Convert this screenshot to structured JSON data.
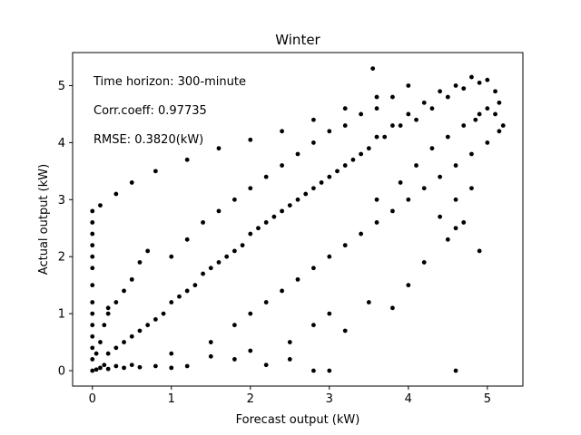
{
  "chart_data": {
    "type": "scatter",
    "title": "Winter",
    "xlabel": "Forecast output (kW)",
    "ylabel": "Actual output (kW)",
    "xlim": [
      -0.25,
      5.45
    ],
    "ylim": [
      -0.27,
      5.58
    ],
    "xticks": [
      0,
      1,
      2,
      3,
      4,
      5
    ],
    "yticks": [
      0,
      1,
      2,
      3,
      4,
      5
    ],
    "grid": false,
    "point_color": "#000000",
    "annotations": [
      "Time horizon: 300-minute",
      "Corr.coeff: 0.97735",
      "RMSE: 0.3820(kW)"
    ],
    "series": [
      {
        "points": [
          [
            0.0,
            0.0
          ],
          [
            0.05,
            0.02
          ],
          [
            0.1,
            0.05
          ],
          [
            0.15,
            0.1
          ],
          [
            0.2,
            0.03
          ],
          [
            0.3,
            0.08
          ],
          [
            0.4,
            0.05
          ],
          [
            0.5,
            0.1
          ],
          [
            0.6,
            0.06
          ],
          [
            0.8,
            0.08
          ],
          [
            1.0,
            0.05
          ],
          [
            1.2,
            0.08
          ],
          [
            0.05,
            0.3
          ],
          [
            0.1,
            0.5
          ],
          [
            0.15,
            0.8
          ],
          [
            0.2,
            1.0
          ],
          [
            0.0,
            2.8
          ],
          [
            0.0,
            2.6
          ],
          [
            0.0,
            2.4
          ],
          [
            0.0,
            2.2
          ],
          [
            0.0,
            2.0
          ],
          [
            0.0,
            1.8
          ],
          [
            0.0,
            1.5
          ],
          [
            0.0,
            1.2
          ],
          [
            0.0,
            1.0
          ],
          [
            0.0,
            0.8
          ],
          [
            0.0,
            0.6
          ],
          [
            0.0,
            0.4
          ],
          [
            0.0,
            0.2
          ],
          [
            0.1,
            2.9
          ],
          [
            0.3,
            3.1
          ],
          [
            0.5,
            3.3
          ],
          [
            0.8,
            3.5
          ],
          [
            1.2,
            3.7
          ],
          [
            1.6,
            3.9
          ],
          [
            2.0,
            4.05
          ],
          [
            2.4,
            4.2
          ],
          [
            2.8,
            4.4
          ],
          [
            3.2,
            4.6
          ],
          [
            3.6,
            4.8
          ],
          [
            4.0,
            5.0
          ],
          [
            0.3,
            0.4
          ],
          [
            0.5,
            0.6
          ],
          [
            0.7,
            0.8
          ],
          [
            0.9,
            1.0
          ],
          [
            1.1,
            1.3
          ],
          [
            1.3,
            1.5
          ],
          [
            1.5,
            1.8
          ],
          [
            1.7,
            2.0
          ],
          [
            1.9,
            2.2
          ],
          [
            2.1,
            2.5
          ],
          [
            2.3,
            2.7
          ],
          [
            2.5,
            2.9
          ],
          [
            2.7,
            3.1
          ],
          [
            2.9,
            3.3
          ],
          [
            3.1,
            3.5
          ],
          [
            3.3,
            3.7
          ],
          [
            3.5,
            3.9
          ],
          [
            3.7,
            4.1
          ],
          [
            3.9,
            4.3
          ],
          [
            4.1,
            4.4
          ],
          [
            4.3,
            4.6
          ],
          [
            4.5,
            4.8
          ],
          [
            4.7,
            4.95
          ],
          [
            4.9,
            5.05
          ],
          [
            5.0,
            5.1
          ],
          [
            5.1,
            4.9
          ],
          [
            5.15,
            4.7
          ],
          [
            5.1,
            4.5
          ],
          [
            5.2,
            4.3
          ],
          [
            5.15,
            4.2
          ],
          [
            4.8,
            5.15
          ],
          [
            4.6,
            5.0
          ],
          [
            4.4,
            4.9
          ],
          [
            4.2,
            4.7
          ],
          [
            4.0,
            4.5
          ],
          [
            3.8,
            4.3
          ],
          [
            3.6,
            4.1
          ],
          [
            3.4,
            3.8
          ],
          [
            3.2,
            3.6
          ],
          [
            3.0,
            3.4
          ],
          [
            2.8,
            3.2
          ],
          [
            2.6,
            3.0
          ],
          [
            2.4,
            2.8
          ],
          [
            2.2,
            2.6
          ],
          [
            2.0,
            2.4
          ],
          [
            1.8,
            2.1
          ],
          [
            1.6,
            1.9
          ],
          [
            1.4,
            1.7
          ],
          [
            1.2,
            1.4
          ],
          [
            1.0,
            1.2
          ],
          [
            0.8,
            0.9
          ],
          [
            0.6,
            0.7
          ],
          [
            0.4,
            0.5
          ],
          [
            0.2,
            0.3
          ],
          [
            1.0,
            2.0
          ],
          [
            1.2,
            2.3
          ],
          [
            1.4,
            2.6
          ],
          [
            1.6,
            2.8
          ],
          [
            1.8,
            3.0
          ],
          [
            2.0,
            3.2
          ],
          [
            2.2,
            3.4
          ],
          [
            2.4,
            3.6
          ],
          [
            2.6,
            3.8
          ],
          [
            2.8,
            4.0
          ],
          [
            3.0,
            4.2
          ],
          [
            3.2,
            4.3
          ],
          [
            3.4,
            4.5
          ],
          [
            3.6,
            4.6
          ],
          [
            3.8,
            4.8
          ],
          [
            1.5,
            0.5
          ],
          [
            1.8,
            0.8
          ],
          [
            2.0,
            1.0
          ],
          [
            2.2,
            1.2
          ],
          [
            2.4,
            1.4
          ],
          [
            2.6,
            1.6
          ],
          [
            2.8,
            1.8
          ],
          [
            3.0,
            2.0
          ],
          [
            3.2,
            2.2
          ],
          [
            3.4,
            2.4
          ],
          [
            3.6,
            2.6
          ],
          [
            3.8,
            2.8
          ],
          [
            4.0,
            3.0
          ],
          [
            4.2,
            3.2
          ],
          [
            4.4,
            3.4
          ],
          [
            4.6,
            3.6
          ],
          [
            4.8,
            3.8
          ],
          [
            5.0,
            4.0
          ],
          [
            2.5,
            0.5
          ],
          [
            2.8,
            0.8
          ],
          [
            3.0,
            1.0
          ],
          [
            3.2,
            0.7
          ],
          [
            3.5,
            1.2
          ],
          [
            3.8,
            1.1
          ],
          [
            4.0,
            1.5
          ],
          [
            4.2,
            1.9
          ],
          [
            4.5,
            2.3
          ],
          [
            4.7,
            2.6
          ],
          [
            4.9,
            2.1
          ],
          [
            4.6,
            0.0
          ],
          [
            2.8,
            0.0
          ],
          [
            2.2,
            0.1
          ],
          [
            1.8,
            0.2
          ],
          [
            3.0,
            0.0
          ],
          [
            3.55,
            5.3
          ],
          [
            2.0,
            0.35
          ],
          [
            2.5,
            0.2
          ],
          [
            1.5,
            0.25
          ],
          [
            1.0,
            0.3
          ],
          [
            0.5,
            1.6
          ],
          [
            0.6,
            1.9
          ],
          [
            0.7,
            2.1
          ],
          [
            0.4,
            1.4
          ],
          [
            0.3,
            1.2
          ],
          [
            0.2,
            1.1
          ],
          [
            3.6,
            3.0
          ],
          [
            3.9,
            3.3
          ],
          [
            4.1,
            3.6
          ],
          [
            4.3,
            3.9
          ],
          [
            4.5,
            4.1
          ],
          [
            4.7,
            4.3
          ],
          [
            4.9,
            4.5
          ],
          [
            5.0,
            4.6
          ],
          [
            4.4,
            2.7
          ],
          [
            4.6,
            3.0
          ],
          [
            4.8,
            3.2
          ],
          [
            4.6,
            2.5
          ],
          [
            4.85,
            4.4
          ]
        ]
      }
    ]
  }
}
